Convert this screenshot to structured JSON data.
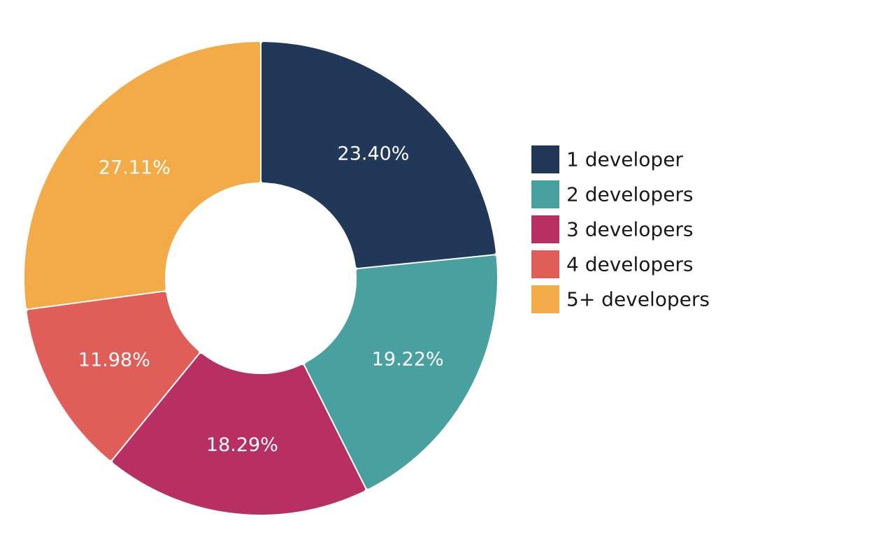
{
  "chart_data": {
    "type": "pie",
    "variant": "donut",
    "title": "",
    "categories": [
      "1 developer",
      "2 developers",
      "3 developers",
      "4 developers",
      "5+ developers"
    ],
    "values": [
      23.4,
      19.22,
      18.29,
      11.98,
      27.11
    ],
    "labels": [
      "23.40%",
      "19.22%",
      "18.29%",
      "11.98%",
      "27.11%"
    ],
    "colors": [
      "#213858",
      "#49a19f",
      "#b83062",
      "#df5f58",
      "#f2ab47"
    ],
    "legend": {
      "position": "right",
      "items": [
        "1 developer",
        "2 developers",
        "3 developers",
        "4 developers",
        "5+ developers"
      ]
    }
  }
}
